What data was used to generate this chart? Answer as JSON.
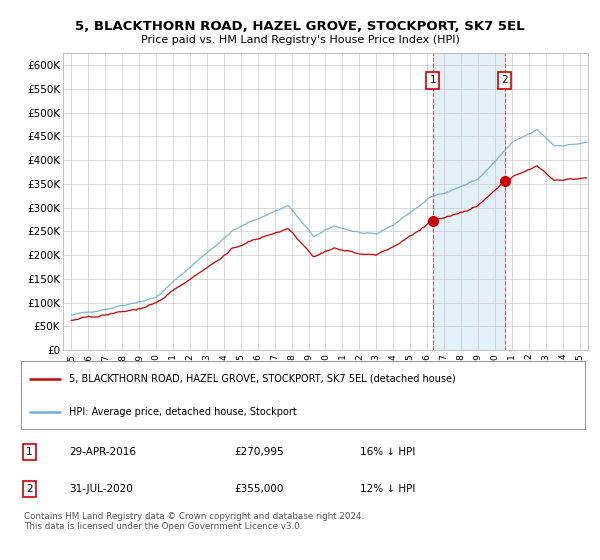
{
  "title": "5, BLACKTHORN ROAD, HAZEL GROVE, STOCKPORT, SK7 5EL",
  "subtitle": "Price paid vs. HM Land Registry's House Price Index (HPI)",
  "ylim": [
    0,
    625000
  ],
  "yticks": [
    0,
    50000,
    100000,
    150000,
    200000,
    250000,
    300000,
    350000,
    400000,
    450000,
    500000,
    550000,
    600000
  ],
  "ytick_labels": [
    "£0",
    "£50K",
    "£100K",
    "£150K",
    "£200K",
    "£250K",
    "£300K",
    "£350K",
    "£400K",
    "£450K",
    "£500K",
    "£550K",
    "£600K"
  ],
  "hpi_color": "#6baed6",
  "price_color": "#cc0000",
  "sale1_year": 2016.33,
  "sale1_price": 270995,
  "sale1_hpi_pct": "16% ↓ HPI",
  "sale1_date": "29-APR-2016",
  "sale2_year": 2020.58,
  "sale2_price": 355000,
  "sale2_hpi_pct": "12% ↓ HPI",
  "sale2_date": "31-JUL-2020",
  "legend_label1": "5, BLACKTHORN ROAD, HAZEL GROVE, STOCKPORT, SK7 5EL (detached house)",
  "legend_label2": "HPI: Average price, detached house, Stockport",
  "footer": "Contains HM Land Registry data © Crown copyright and database right 2024.\nThis data is licensed under the Open Government Licence v3.0.",
  "background_color": "#ffffff",
  "grid_color": "#cccccc",
  "shade_color": "#ddeeff",
  "xstart": 1995,
  "xend": 2025
}
